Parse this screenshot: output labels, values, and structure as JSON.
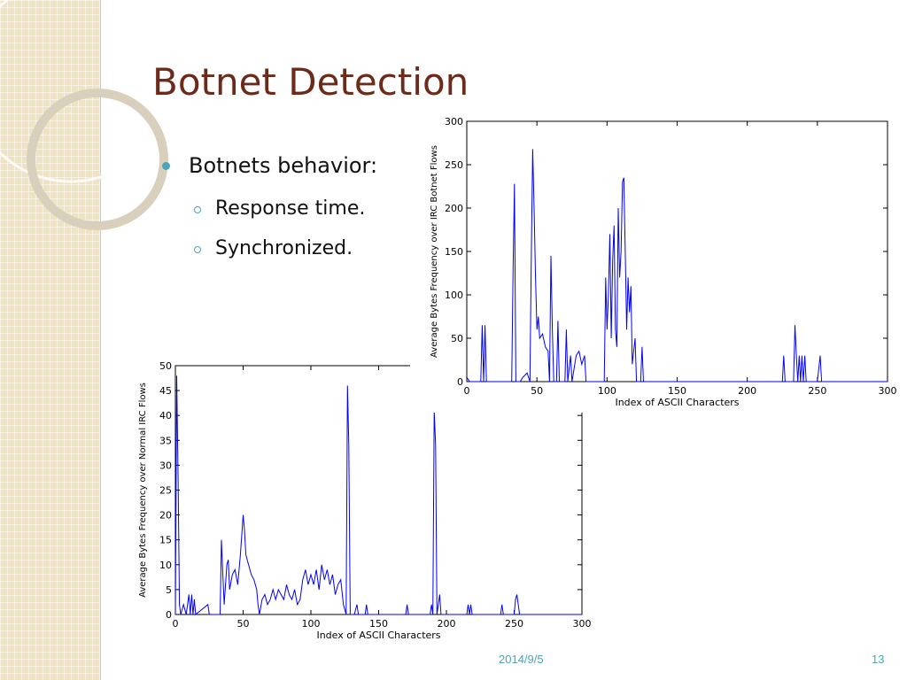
{
  "title": "Botnet Detection",
  "bullets": [
    {
      "text": "Botnets behavior:",
      "sub": [
        "Response time.",
        "Synchronized."
      ]
    }
  ],
  "footer": {
    "date": "2014/9/5",
    "page": "13"
  },
  "chart_data": [
    {
      "type": "line",
      "xlabel": "Index of ASCII Characters",
      "ylabel": "Average Bytes Frequency over IRC Botnet Flows",
      "color": "#0000ff",
      "xlim": [
        0,
        300
      ],
      "ylim": [
        0,
        300
      ],
      "xticks": [
        0,
        50,
        100,
        150,
        200,
        250,
        300
      ],
      "yticks": [
        0,
        50,
        100,
        150,
        200,
        250,
        300
      ],
      "x": [
        0,
        2,
        10,
        11,
        12,
        13,
        14,
        32,
        33,
        34,
        35,
        38,
        40,
        43,
        45,
        46,
        47,
        48,
        49,
        50,
        51,
        52,
        54,
        56,
        58,
        59,
        60,
        61,
        62,
        64,
        65,
        66,
        70,
        71,
        72,
        74,
        75,
        78,
        80,
        82,
        84,
        85,
        86,
        98,
        99,
        100,
        101,
        102,
        103,
        104,
        105,
        106,
        107,
        108,
        109,
        110,
        111,
        112,
        113,
        114,
        115,
        116,
        117,
        118,
        120,
        121,
        124,
        125,
        126,
        225,
        226,
        227,
        233,
        234,
        235,
        236,
        237,
        238,
        239,
        240,
        241,
        242,
        250,
        252,
        253,
        300
      ],
      "values": [
        5,
        0,
        0,
        65,
        0,
        65,
        0,
        0,
        130,
        228,
        0,
        0,
        5,
        10,
        0,
        140,
        268,
        200,
        120,
        60,
        75,
        50,
        55,
        40,
        35,
        0,
        145,
        60,
        0,
        0,
        70,
        0,
        0,
        60,
        0,
        30,
        0,
        30,
        35,
        20,
        30,
        0,
        0,
        0,
        120,
        60,
        100,
        170,
        50,
        140,
        180,
        60,
        40,
        200,
        120,
        150,
        230,
        235,
        150,
        60,
        120,
        80,
        110,
        20,
        50,
        0,
        0,
        40,
        0,
        0,
        30,
        0,
        0,
        65,
        30,
        0,
        30,
        0,
        30,
        0,
        30,
        0,
        0,
        30,
        0,
        0
      ]
    },
    {
      "type": "line",
      "xlabel": "Index of ASCII Characters",
      "ylabel": "Average Bytes Frequency over Normal IRC Flows",
      "color": "#0000ff",
      "xlim": [
        0,
        300
      ],
      "ylim": [
        0,
        50
      ],
      "xticks": [
        0,
        50,
        100,
        150,
        200,
        250,
        300
      ],
      "yticks": [
        0,
        5,
        10,
        15,
        20,
        25,
        30,
        35,
        40,
        45,
        50
      ],
      "x": [
        0,
        1,
        2,
        3,
        4,
        6,
        8,
        10,
        11,
        12,
        13,
        14,
        15,
        24,
        25,
        33,
        34,
        35,
        36,
        38,
        39,
        40,
        42,
        44,
        46,
        48,
        50,
        51,
        52,
        54,
        56,
        58,
        60,
        61,
        62,
        64,
        66,
        68,
        70,
        72,
        74,
        76,
        78,
        80,
        82,
        84,
        86,
        88,
        90,
        92,
        94,
        96,
        98,
        100,
        102,
        104,
        106,
        108,
        110,
        112,
        114,
        116,
        118,
        120,
        122,
        124,
        126,
        127,
        128,
        129,
        132,
        134,
        135,
        140,
        141,
        142,
        170,
        171,
        172,
        188,
        189,
        190,
        191,
        192,
        193,
        195,
        196,
        215,
        216,
        217,
        218,
        219,
        240,
        241,
        242,
        250,
        251,
        252,
        253,
        254,
        300
      ],
      "values": [
        0,
        48,
        27,
        2,
        0,
        2,
        0,
        4,
        0,
        4,
        0,
        3,
        0,
        2,
        0,
        0,
        15,
        8,
        2,
        10,
        11,
        5,
        8,
        9,
        6,
        12,
        20,
        17,
        12,
        10,
        8,
        7,
        5,
        2,
        0,
        3,
        4,
        2,
        3,
        5,
        3,
        5,
        4,
        3,
        6,
        4,
        3,
        5,
        2,
        3,
        7,
        9,
        6,
        8,
        6,
        9,
        5,
        10,
        7,
        9,
        6,
        8,
        4,
        6,
        7,
        2,
        0,
        46,
        34,
        0,
        0,
        2,
        0,
        0,
        2,
        0,
        0,
        2,
        0,
        0,
        2,
        0,
        41,
        34,
        0,
        4,
        0,
        0,
        2,
        0,
        2,
        0,
        0,
        2,
        0,
        0,
        3,
        4,
        2,
        0,
        0
      ]
    }
  ]
}
